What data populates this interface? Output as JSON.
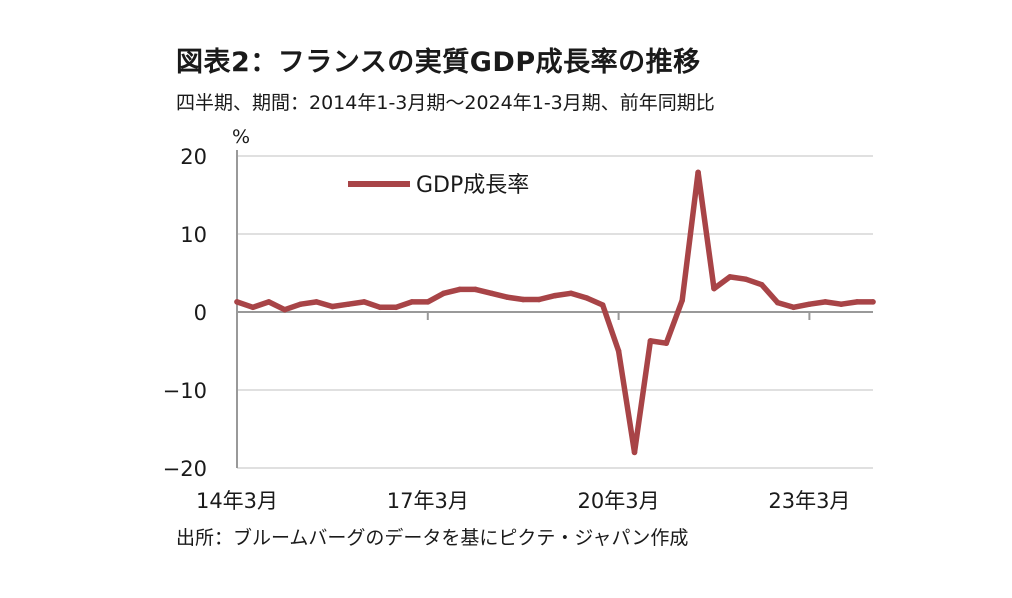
{
  "title": "図表2：フランスの実質GDP成長率の推移",
  "subtitle": "四半期、期間：2014年1-3月期～2024年1-3月期、前年同期比",
  "source": "出所：ブルームバーグのデータを基にピクテ・ジャパン作成",
  "colors": {
    "series": "#a84447",
    "axis": "#999999",
    "grid": "#d6d6d6"
  },
  "chart_data": {
    "type": "line",
    "unit_label": "%",
    "ylim": [
      -20,
      20
    ],
    "yticks": [
      20,
      10,
      0,
      -10,
      -20
    ],
    "ytick_labels": [
      "20",
      "10",
      "0",
      "−10",
      "−20"
    ],
    "grid": true,
    "legend_position": "top-left",
    "x_ticks": [
      {
        "index": 0,
        "label": "14年3月"
      },
      {
        "index": 12,
        "label": "17年3月"
      },
      {
        "index": 24,
        "label": "20年3月"
      },
      {
        "index": 36,
        "label": "23年3月"
      }
    ],
    "x": [
      "14年3月",
      "14年6月",
      "14年9月",
      "14年12月",
      "15年3月",
      "15年6月",
      "15年9月",
      "15年12月",
      "16年3月",
      "16年6月",
      "16年9月",
      "16年12月",
      "17年3月",
      "17年6月",
      "17年9月",
      "17年12月",
      "18年3月",
      "18年6月",
      "18年9月",
      "18年12月",
      "19年3月",
      "19年6月",
      "19年9月",
      "19年12月",
      "20年3月",
      "20年6月",
      "20年9月",
      "20年12月",
      "21年3月",
      "21年6月",
      "21年9月",
      "21年12月",
      "22年3月",
      "22年6月",
      "22年9月",
      "22年12月",
      "23年3月",
      "23年6月",
      "23年9月",
      "23年12月",
      "24年3月"
    ],
    "series": [
      {
        "name": "GDP成長率",
        "values": [
          1.3,
          0.6,
          1.3,
          0.3,
          1.0,
          1.3,
          0.7,
          1.0,
          1.3,
          0.6,
          0.6,
          1.3,
          1.3,
          2.4,
          2.9,
          2.9,
          2.4,
          1.9,
          1.6,
          1.6,
          2.1,
          2.4,
          1.8,
          0.9,
          -5.0,
          -18.0,
          -3.7,
          -4.0,
          1.5,
          17.9,
          3.0,
          4.5,
          4.2,
          3.5,
          1.2,
          0.6,
          1.0,
          1.3,
          1.0,
          1.3,
          1.3
        ]
      }
    ]
  }
}
